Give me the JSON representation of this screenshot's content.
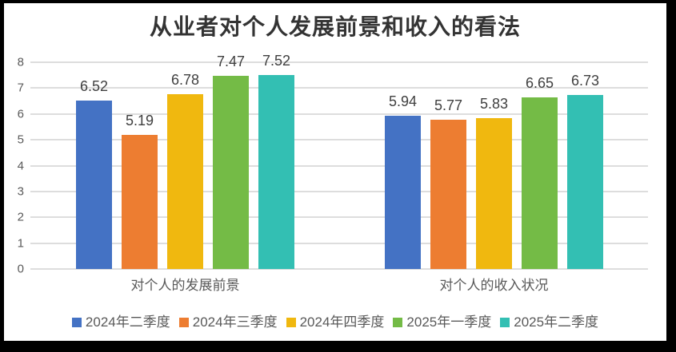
{
  "title": "从业者对个人发展前景和收入的看法",
  "chart_data": {
    "type": "bar",
    "title": "从业者对个人发展前景和收入的看法",
    "categories": [
      "对个人的发展前景",
      "对个人的收入状况"
    ],
    "series": [
      {
        "name": "2024年二季度",
        "color": "#4472C4",
        "values": [
          6.52,
          5.94
        ]
      },
      {
        "name": "2024年三季度",
        "color": "#ED7D31",
        "values": [
          5.19,
          5.77
        ]
      },
      {
        "name": "2024年四季度",
        "color": "#F0B80F",
        "values": [
          6.78,
          5.83
        ]
      },
      {
        "name": "2025年一季度",
        "color": "#74BB46",
        "values": [
          7.47,
          6.65
        ]
      },
      {
        "name": "2025年二季度",
        "color": "#33BFB3",
        "values": [
          7.52,
          6.73
        ]
      }
    ],
    "ylim": [
      0,
      8
    ],
    "yticks": [
      0,
      1,
      2,
      3,
      4,
      5,
      6,
      7,
      8
    ],
    "grid": true,
    "legend_position": "bottom",
    "colors": {
      "title_text": "#333333",
      "axis_text": "#595959",
      "data_label_text": "#3F3F3F",
      "gridline": "#DDDDDD",
      "background": "#FFFFFF",
      "frame": "#000000"
    }
  }
}
